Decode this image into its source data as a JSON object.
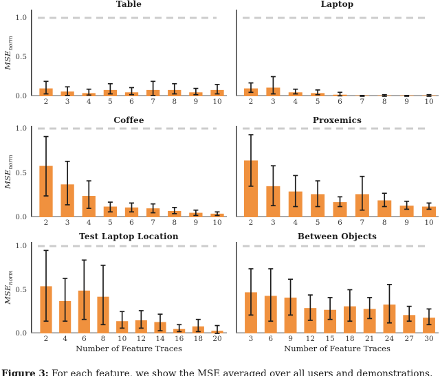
{
  "figure": {
    "ylabel_main": "MSE",
    "ylabel_sub": "norm",
    "xlabel_left": "Number of Feature Traces",
    "xlabel_right": "Number of Feature Traces",
    "yticks": [
      "0.0",
      "0.5",
      "1.0"
    ],
    "caption_bold": "Figure 3:",
    "caption_text": " For each feature, we show the MSE averaged over all users and demonstrations.",
    "colors": {
      "bar": "#F0913E",
      "error": "#1c1c1c",
      "dashed": "#cccccc",
      "spine": "#3a3a3a",
      "axis": "#8a8a8a"
    }
  },
  "chart_data": [
    {
      "type": "bar",
      "title": "Table",
      "categories": [
        "2",
        "3",
        "4",
        "5",
        "6",
        "7",
        "8",
        "9",
        "10"
      ],
      "values": [
        0.1,
        0.06,
        0.04,
        0.08,
        0.05,
        0.08,
        0.08,
        0.05,
        0.08
      ],
      "err_low": [
        0.03,
        0.01,
        0.015,
        0.03,
        0.02,
        0.01,
        0.03,
        0.02,
        0.03
      ],
      "err_high": [
        0.19,
        0.12,
        0.09,
        0.16,
        0.11,
        0.19,
        0.16,
        0.1,
        0.15
      ],
      "ylim": [
        0,
        1.1
      ],
      "reference_line": 1.0
    },
    {
      "type": "bar",
      "title": "Laptop",
      "categories": [
        "2",
        "3",
        "4",
        "5",
        "6",
        "7",
        "8",
        "9",
        "10"
      ],
      "values": [
        0.1,
        0.11,
        0.05,
        0.04,
        0.02,
        0.005,
        0.005,
        0.005,
        0.005
      ],
      "err_low": [
        0.05,
        0.03,
        0.03,
        0.02,
        0.005,
        0.0,
        0.0,
        0.0,
        0.0
      ],
      "err_high": [
        0.17,
        0.25,
        0.09,
        0.08,
        0.05,
        0.01,
        0.02,
        0.01,
        0.02
      ],
      "ylim": [
        0,
        1.1
      ],
      "reference_line": 1.0
    },
    {
      "type": "bar",
      "title": "Coffee",
      "categories": [
        "2",
        "3",
        "4",
        "5",
        "6",
        "7",
        "8",
        "9",
        "10"
      ],
      "values": [
        0.58,
        0.37,
        0.24,
        0.12,
        0.11,
        0.1,
        0.07,
        0.05,
        0.04
      ],
      "err_low": [
        0.24,
        0.14,
        0.1,
        0.06,
        0.06,
        0.05,
        0.04,
        0.02,
        0.02
      ],
      "err_high": [
        0.91,
        0.63,
        0.41,
        0.17,
        0.16,
        0.15,
        0.11,
        0.08,
        0.06
      ],
      "ylim": [
        0,
        1.1
      ],
      "reference_line": 1.0
    },
    {
      "type": "bar",
      "title": "Proxemics",
      "categories": [
        "2",
        "3",
        "4",
        "5",
        "6",
        "7",
        "8",
        "9",
        "10"
      ],
      "values": [
        0.64,
        0.35,
        0.29,
        0.26,
        0.17,
        0.26,
        0.19,
        0.13,
        0.12
      ],
      "err_low": [
        0.35,
        0.13,
        0.12,
        0.12,
        0.12,
        0.08,
        0.12,
        0.09,
        0.09
      ],
      "err_high": [
        0.93,
        0.58,
        0.47,
        0.41,
        0.23,
        0.46,
        0.27,
        0.18,
        0.16
      ],
      "ylim": [
        0,
        1.1
      ],
      "reference_line": 1.0
    },
    {
      "type": "bar",
      "title": "Test Laptop Location",
      "categories": [
        "2",
        "4",
        "6",
        "8",
        "10",
        "12",
        "14",
        "16",
        "18",
        "20"
      ],
      "values": [
        0.54,
        0.37,
        0.49,
        0.42,
        0.14,
        0.15,
        0.13,
        0.05,
        0.08,
        0.03
      ],
      "err_low": [
        0.14,
        0.14,
        0.16,
        0.1,
        0.06,
        0.06,
        0.03,
        0.02,
        0.02,
        0.0
      ],
      "err_high": [
        0.95,
        0.63,
        0.84,
        0.78,
        0.25,
        0.26,
        0.22,
        0.1,
        0.16,
        0.09
      ],
      "ylim": [
        0,
        1.1
      ],
      "reference_line": 1.0
    },
    {
      "type": "bar",
      "title": "Between Objects",
      "categories": [
        "3",
        "6",
        "9",
        "12",
        "15",
        "18",
        "21",
        "24",
        "27",
        "30"
      ],
      "values": [
        0.47,
        0.43,
        0.41,
        0.29,
        0.27,
        0.31,
        0.28,
        0.33,
        0.21,
        0.18
      ],
      "err_low": [
        0.21,
        0.14,
        0.21,
        0.15,
        0.16,
        0.14,
        0.17,
        0.12,
        0.14,
        0.1
      ],
      "err_high": [
        0.74,
        0.74,
        0.62,
        0.44,
        0.41,
        0.5,
        0.41,
        0.56,
        0.31,
        0.28
      ],
      "ylim": [
        0,
        1.1
      ],
      "reference_line": 1.0
    }
  ]
}
